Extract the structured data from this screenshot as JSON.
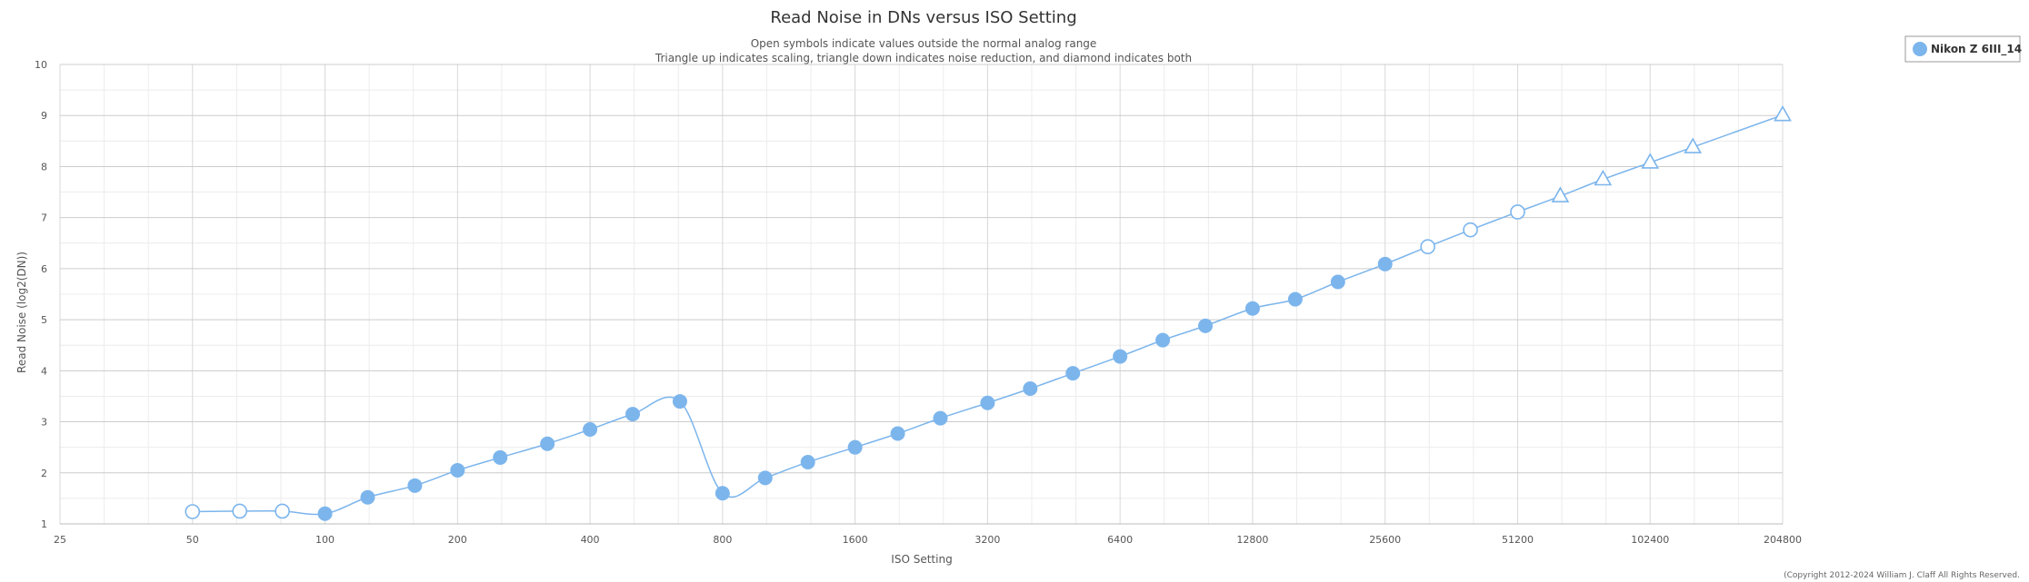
{
  "chart_data": {
    "type": "line",
    "title": "Read Noise in DNs versus ISO Setting",
    "subtitle_lines": [
      "Open symbols indicate values outside the normal analog range",
      "Triangle up indicates scaling, triangle down indicates noise reduction, and diamond indicates both"
    ],
    "xlabel": "ISO Setting",
    "ylabel": "Read Noise (log2(DN))",
    "x_scale": "log2",
    "xlim": [
      25,
      204800
    ],
    "ylim": [
      1,
      10
    ],
    "x_ticks": [
      25,
      50,
      100,
      200,
      400,
      800,
      1600,
      3200,
      6400,
      12800,
      25600,
      51200,
      102400,
      204800
    ],
    "x_tick_labels": [
      "25",
      "50",
      "100",
      "200",
      "400",
      "800",
      "1600",
      "3200",
      "6400",
      "12800",
      "25600",
      "51200",
      "102400",
      "204800"
    ],
    "y_ticks": [
      1,
      2,
      3,
      4,
      5,
      6,
      7,
      8,
      9,
      10
    ],
    "y_tick_labels": [
      "1",
      "2",
      "3",
      "4",
      "5",
      "6",
      "7",
      "8",
      "9",
      "10"
    ],
    "grid": true,
    "legend_position": "top-right",
    "copyright": "(Copyright 2012-2024 William J. Claff All Rights Reserved.",
    "series": [
      {
        "name": "Nikon Z 6III_14",
        "color": "#7cb5ec",
        "points": [
          {
            "x": 50,
            "y": 1.24,
            "marker": "open-circle"
          },
          {
            "x": 64,
            "y": 1.25,
            "marker": "open-circle"
          },
          {
            "x": 80,
            "y": 1.25,
            "marker": "open-circle"
          },
          {
            "x": 100,
            "y": 1.2,
            "marker": "circle"
          },
          {
            "x": 125,
            "y": 1.52,
            "marker": "circle"
          },
          {
            "x": 160,
            "y": 1.75,
            "marker": "circle"
          },
          {
            "x": 200,
            "y": 2.05,
            "marker": "circle"
          },
          {
            "x": 250,
            "y": 2.3,
            "marker": "circle"
          },
          {
            "x": 320,
            "y": 2.57,
            "marker": "circle"
          },
          {
            "x": 400,
            "y": 2.85,
            "marker": "circle"
          },
          {
            "x": 500,
            "y": 3.15,
            "marker": "circle"
          },
          {
            "x": 640,
            "y": 3.4,
            "marker": "circle"
          },
          {
            "x": 800,
            "y": 1.6,
            "marker": "circle"
          },
          {
            "x": 1000,
            "y": 1.9,
            "marker": "circle"
          },
          {
            "x": 1250,
            "y": 2.21,
            "marker": "circle"
          },
          {
            "x": 1600,
            "y": 2.5,
            "marker": "circle"
          },
          {
            "x": 2000,
            "y": 2.77,
            "marker": "circle"
          },
          {
            "x": 2500,
            "y": 3.07,
            "marker": "circle"
          },
          {
            "x": 3200,
            "y": 3.37,
            "marker": "circle"
          },
          {
            "x": 4000,
            "y": 3.65,
            "marker": "circle"
          },
          {
            "x": 5000,
            "y": 3.95,
            "marker": "circle"
          },
          {
            "x": 6400,
            "y": 4.28,
            "marker": "circle"
          },
          {
            "x": 8000,
            "y": 4.6,
            "marker": "circle"
          },
          {
            "x": 10000,
            "y": 4.88,
            "marker": "circle"
          },
          {
            "x": 12800,
            "y": 5.22,
            "marker": "circle"
          },
          {
            "x": 16000,
            "y": 5.4,
            "marker": "circle"
          },
          {
            "x": 20000,
            "y": 5.74,
            "marker": "circle"
          },
          {
            "x": 25600,
            "y": 6.09,
            "marker": "circle"
          },
          {
            "x": 32000,
            "y": 6.43,
            "marker": "open-circle"
          },
          {
            "x": 40000,
            "y": 6.76,
            "marker": "open-circle"
          },
          {
            "x": 51200,
            "y": 7.11,
            "marker": "open-circle"
          },
          {
            "x": 64000,
            "y": 7.42,
            "marker": "open-triangle-up"
          },
          {
            "x": 80000,
            "y": 7.75,
            "marker": "open-triangle-up"
          },
          {
            "x": 102400,
            "y": 8.08,
            "marker": "open-triangle-up"
          },
          {
            "x": 128000,
            "y": 8.38,
            "marker": "open-triangle-up"
          },
          {
            "x": 204800,
            "y": 9.01,
            "marker": "open-triangle-up"
          }
        ]
      }
    ]
  }
}
